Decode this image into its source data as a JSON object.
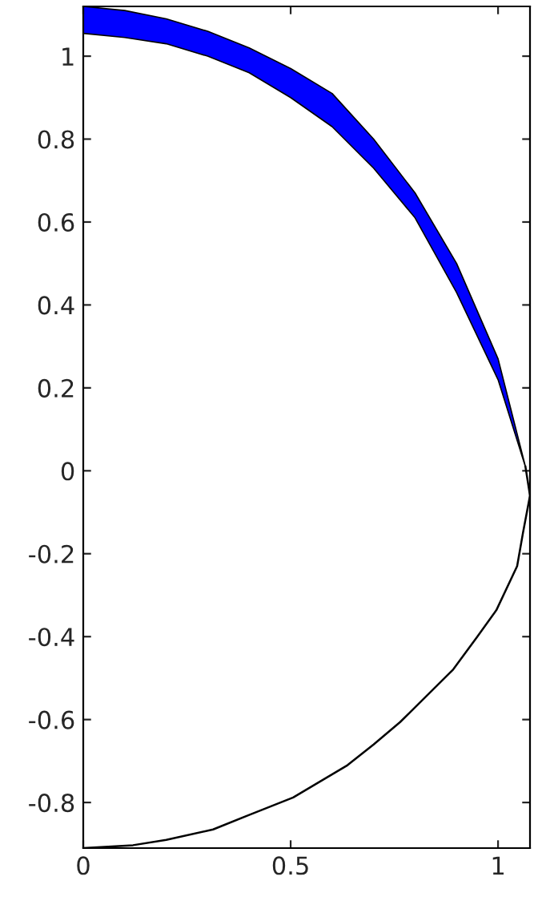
{
  "chart_data": {
    "type": "area",
    "series": [
      {
        "color": "#0000ff",
        "x": [
          0,
          0.1,
          0.2,
          0.3,
          0.4,
          0.5,
          0.6,
          0.7,
          0.8,
          0.9,
          1.0,
          1.066,
          1.0,
          0.9,
          0.8,
          0.7,
          0.6,
          0.5,
          0.4,
          0.3,
          0.2,
          0.1,
          0
        ],
        "values": [
          1.12,
          1.11,
          1.09,
          1.06,
          1.02,
          0.97,
          0.91,
          0.8,
          0.67,
          0.5,
          0.27,
          0.01,
          0.22,
          0.43,
          0.61,
          0.73,
          0.83,
          0.9,
          0.96,
          1.0,
          1.03,
          1.045,
          1.055
        ]
      },
      {
        "type": "line",
        "color": "#000000",
        "x": [
          1.066,
          1.077,
          1.06,
          1.046,
          0.996,
          0.95,
          0.892,
          0.764,
          0.7,
          0.637,
          0.506,
          0.4,
          0.313,
          0.2,
          0.12,
          0
        ],
        "values": [
          0.01,
          -0.06,
          -0.15,
          -0.23,
          -0.336,
          -0.4,
          -0.479,
          -0.606,
          -0.66,
          -0.71,
          -0.788,
          -0.83,
          -0.865,
          -0.89,
          -0.903,
          -0.91
        ]
      }
    ],
    "xlim": [
      0,
      1.077
    ],
    "ylim": [
      -0.91,
      1.12
    ],
    "xticks": [
      0,
      0.5,
      1
    ],
    "yticks": [
      -0.8,
      -0.6,
      -0.4,
      -0.2,
      0,
      0.2,
      0.4,
      0.6,
      0.8,
      1
    ],
    "grid": false,
    "legend": false
  }
}
